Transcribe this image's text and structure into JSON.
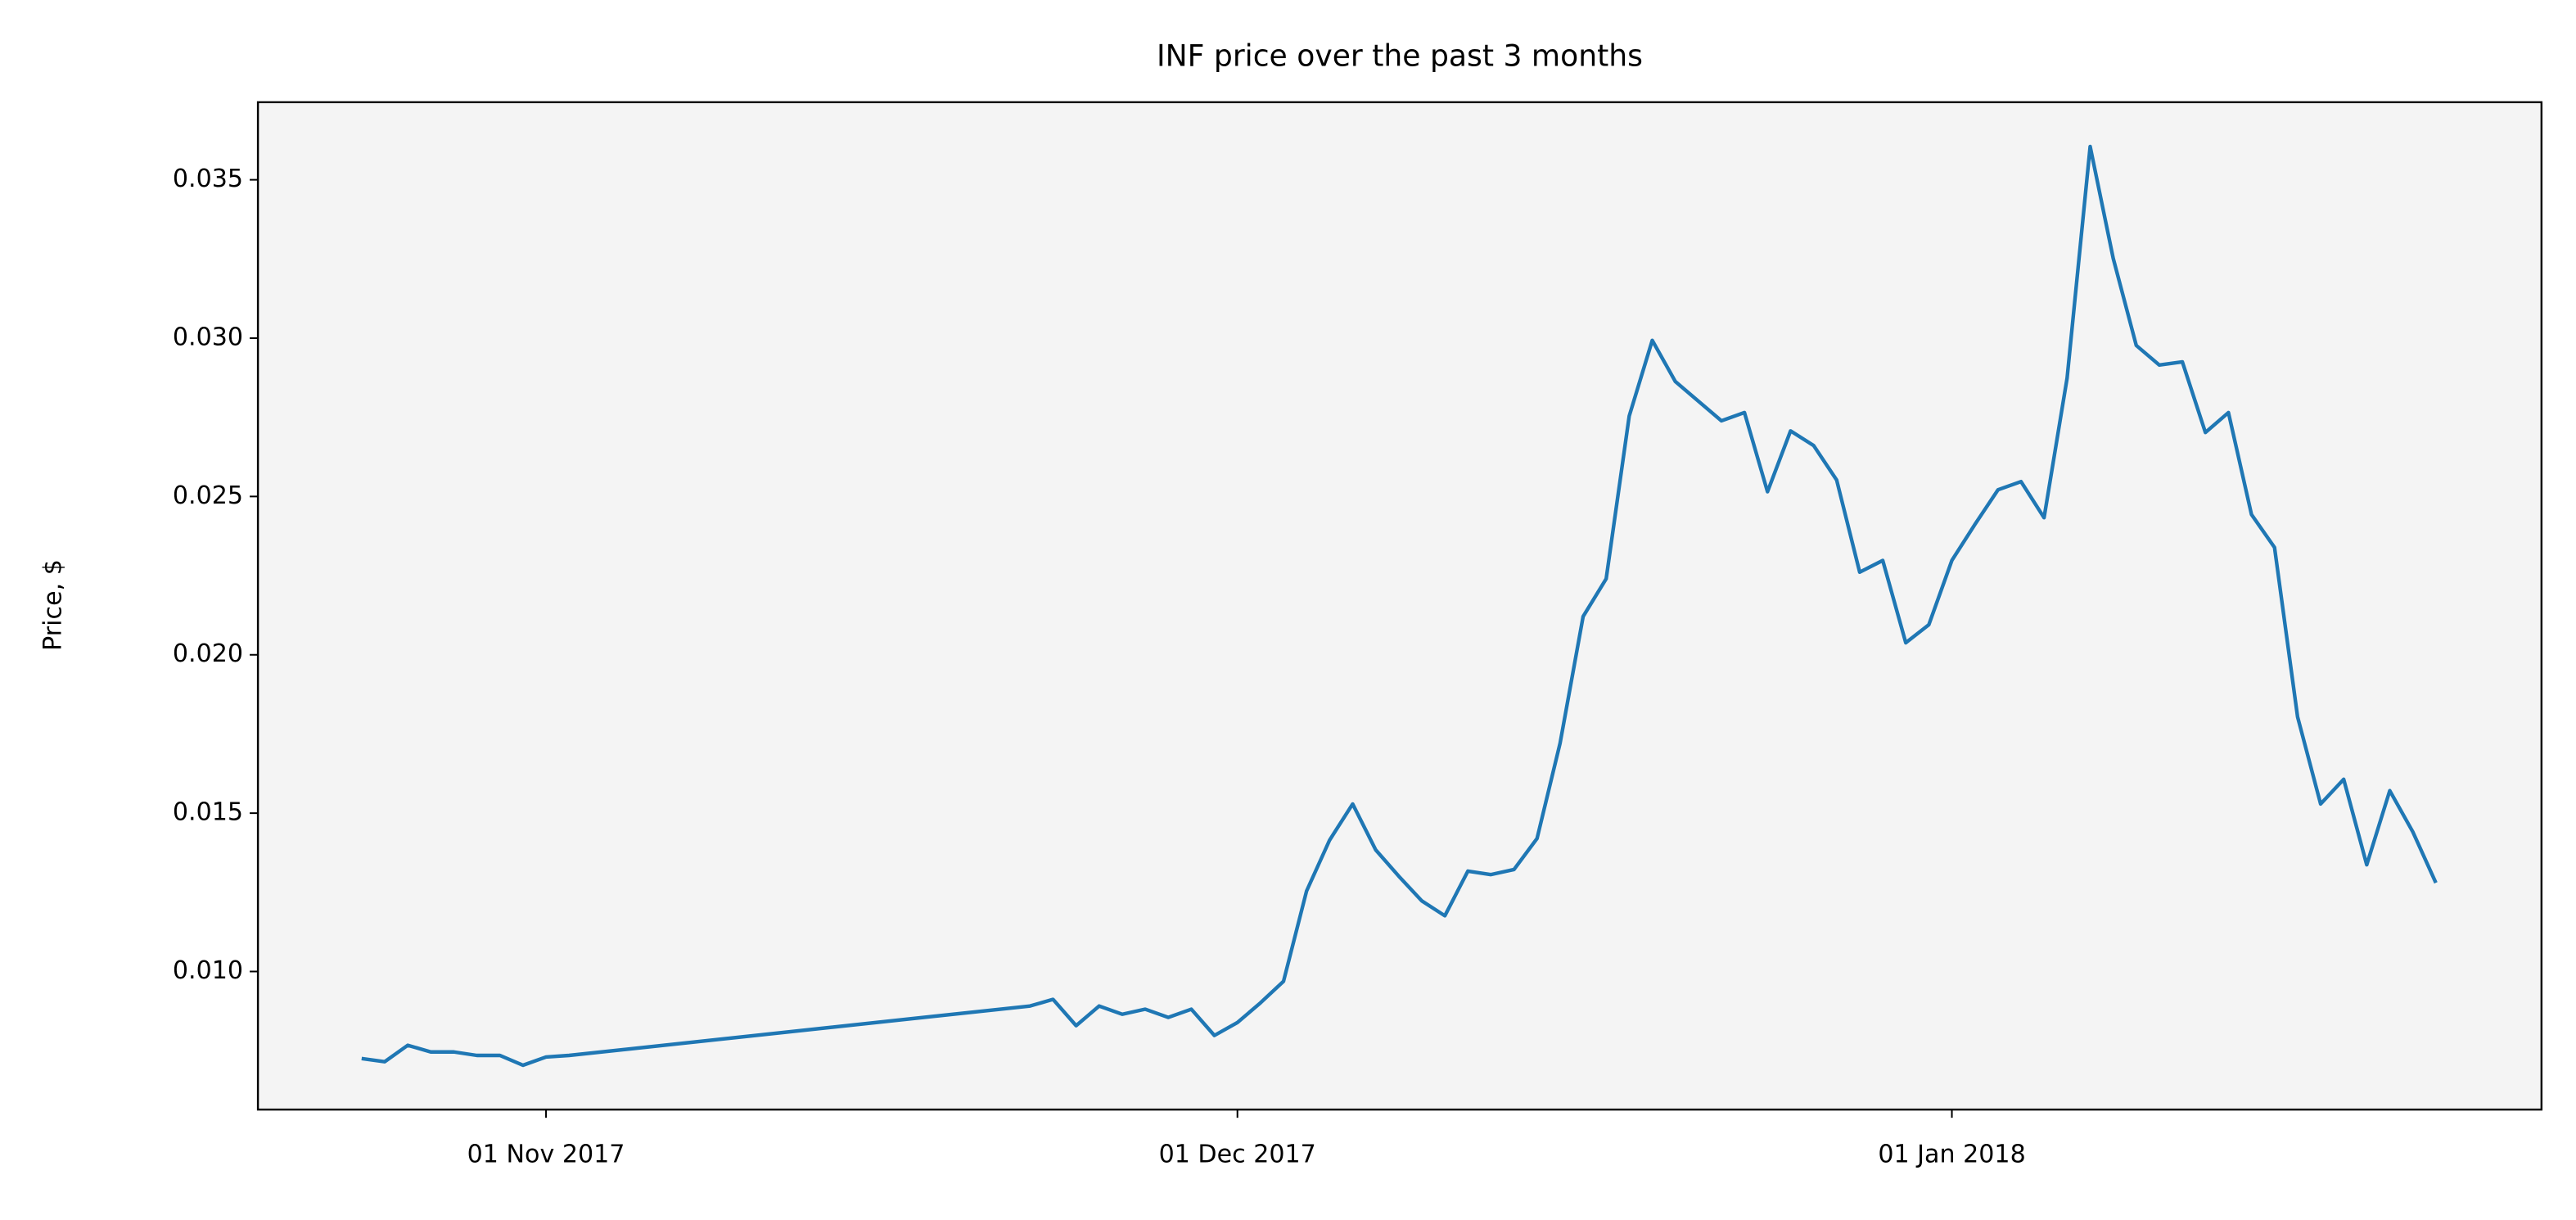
{
  "chart_data": {
    "type": "line",
    "title": "INF price over the past 3 months",
    "ylabel": "Price, $",
    "color": "#1f77b4",
    "background": "#f4f4f4",
    "x": [
      "2017-10-24",
      "2017-10-25",
      "2017-10-26",
      "2017-10-27",
      "2017-10-28",
      "2017-10-29",
      "2017-10-30",
      "2017-10-31",
      "2017-11-01",
      "2017-11-02",
      "2017-11-22",
      "2017-11-23",
      "2017-11-24",
      "2017-11-25",
      "2017-11-26",
      "2017-11-27",
      "2017-11-28",
      "2017-11-29",
      "2017-11-30",
      "2017-12-01",
      "2017-12-02",
      "2017-12-03",
      "2017-12-04",
      "2017-12-05",
      "2017-12-06",
      "2017-12-07",
      "2017-12-08",
      "2017-12-09",
      "2017-12-10",
      "2017-12-11",
      "2017-12-12",
      "2017-12-13",
      "2017-12-14",
      "2017-12-15",
      "2017-12-16",
      "2017-12-17",
      "2017-12-18",
      "2017-12-19",
      "2017-12-20",
      "2017-12-21",
      "2017-12-22",
      "2017-12-23",
      "2017-12-24",
      "2017-12-25",
      "2017-12-26",
      "2017-12-27",
      "2017-12-28",
      "2017-12-29",
      "2017-12-30",
      "2017-12-31",
      "2018-01-01",
      "2018-01-02",
      "2018-01-03",
      "2018-01-04",
      "2018-01-05",
      "2018-01-06",
      "2018-01-07",
      "2018-01-08",
      "2018-01-09",
      "2018-01-10",
      "2018-01-11",
      "2018-01-12",
      "2018-01-13",
      "2018-01-14",
      "2018-01-15",
      "2018-01-16",
      "2018-01-17",
      "2018-01-18",
      "2018-01-19",
      "2018-01-20",
      "2018-01-21",
      "2018-01-22"
    ],
    "values": [
      0.00725,
      0.00715,
      0.00767,
      0.00746,
      0.00746,
      0.00735,
      0.00735,
      0.00704,
      0.0073,
      0.00735,
      0.00891,
      0.00912,
      0.00829,
      0.00891,
      0.00865,
      0.00881,
      0.00855,
      0.00881,
      0.00798,
      0.00839,
      0.00901,
      0.00969,
      0.01254,
      0.01415,
      0.01529,
      0.01384,
      0.01301,
      0.01223,
      0.01176,
      0.01317,
      0.01306,
      0.01322,
      0.0142,
      0.01721,
      0.02121,
      0.0224,
      0.02754,
      0.02993,
      0.02863,
      0.02801,
      0.02739,
      0.02765,
      0.02515,
      0.02707,
      0.02661,
      0.02552,
      0.02261,
      0.02298,
      0.02038,
      0.02095,
      0.02298,
      0.02412,
      0.02521,
      0.02547,
      0.02433,
      0.02874,
      0.03605,
      0.03252,
      0.02977,
      0.02915,
      0.02925,
      0.02702,
      0.02765,
      0.02443,
      0.02339,
      0.01804,
      0.01529,
      0.01607,
      0.01337,
      0.01571,
      0.01441,
      0.0128
    ],
    "xlim": [
      "2017-10-19T12:00:00Z",
      "2018-01-26T14:00:00Z"
    ],
    "xticks": [
      {
        "value": "2017-11-01",
        "label": "01 Nov 2017"
      },
      {
        "value": "2017-12-01",
        "label": "01 Dec 2017"
      },
      {
        "value": "2018-01-01",
        "label": "01 Jan 2018"
      }
    ],
    "ylim": [
      0.00564,
      0.03745
    ],
    "yticks": [
      {
        "value": 0.01,
        "label": "0.010"
      },
      {
        "value": 0.015,
        "label": "0.015"
      },
      {
        "value": 0.02,
        "label": "0.020"
      },
      {
        "value": 0.025,
        "label": "0.025"
      },
      {
        "value": 0.03,
        "label": "0.030"
      },
      {
        "value": 0.035,
        "label": "0.035"
      }
    ]
  }
}
